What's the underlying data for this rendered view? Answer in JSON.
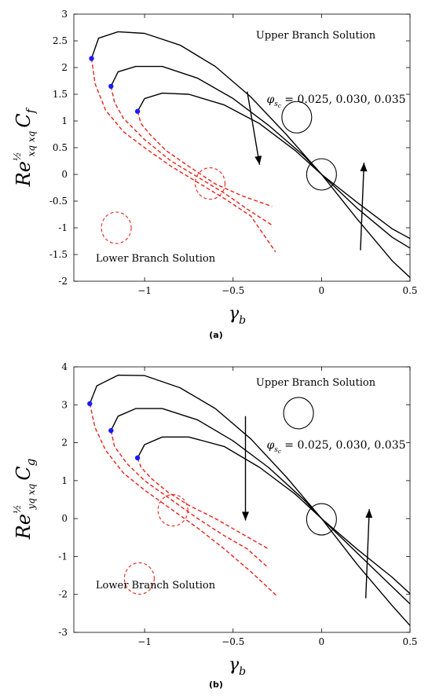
{
  "chart_data": [
    {
      "panel": "(a)",
      "type": "line",
      "title": "",
      "xlabel": "γ_b",
      "ylabel": "Re^{1/2}_{x_q x_q} C_f",
      "xlim": [
        -1.4,
        0.5
      ],
      "ylim": [
        -2,
        3
      ],
      "xticks": [
        -1,
        -0.5,
        0,
        0.5
      ],
      "xtick_labels": [
        "−1",
        "−0.5",
        "0",
        "0.5"
      ],
      "yticks": [
        -2,
        -1.5,
        -1,
        -0.5,
        0,
        0.5,
        1,
        1.5,
        2,
        2.5,
        3
      ],
      "ytick_labels": [
        "-2",
        "-1.5",
        "-1",
        "-0.5",
        "0",
        "0.5",
        "1",
        "1.5",
        "2",
        "2.5",
        "3"
      ],
      "grid": false,
      "series": [
        {
          "branch": "upper",
          "color": "#000000",
          "style": "solid",
          "points": [
            [
              -1.3,
              2.17
            ],
            [
              -1.26,
              2.55
            ],
            [
              -1.15,
              2.67
            ],
            [
              -1.0,
              2.64
            ],
            [
              -0.8,
              2.42
            ],
            [
              -0.6,
              2.02
            ],
            [
              -0.4,
              1.45
            ],
            [
              -0.2,
              0.75
            ],
            [
              0.0,
              0.0
            ],
            [
              0.2,
              -0.83
            ],
            [
              0.4,
              -1.62
            ],
            [
              0.5,
              -1.93
            ]
          ]
        },
        {
          "branch": "upper",
          "color": "#000000",
          "style": "solid",
          "points": [
            [
              -1.19,
              1.65
            ],
            [
              -1.15,
              1.92
            ],
            [
              -1.05,
              2.02
            ],
            [
              -0.9,
              2.02
            ],
            [
              -0.7,
              1.8
            ],
            [
              -0.5,
              1.42
            ],
            [
              -0.3,
              0.92
            ],
            [
              -0.1,
              0.35
            ],
            [
              0.0,
              0.0
            ],
            [
              0.2,
              -0.63
            ],
            [
              0.4,
              -1.18
            ],
            [
              0.5,
              -1.38
            ]
          ]
        },
        {
          "branch": "upper",
          "color": "#000000",
          "style": "solid",
          "points": [
            [
              -1.04,
              1.18
            ],
            [
              -1.0,
              1.42
            ],
            [
              -0.9,
              1.52
            ],
            [
              -0.75,
              1.5
            ],
            [
              -0.55,
              1.3
            ],
            [
              -0.35,
              0.95
            ],
            [
              -0.15,
              0.45
            ],
            [
              0.0,
              0.0
            ],
            [
              0.2,
              -0.52
            ],
            [
              0.4,
              -1.02
            ],
            [
              0.5,
              -1.2
            ]
          ]
        },
        {
          "branch": "lower",
          "color": "#e8221a",
          "style": "dashed",
          "points": [
            [
              -1.3,
              2.17
            ],
            [
              -1.28,
              1.7
            ],
            [
              -1.22,
              1.2
            ],
            [
              -1.12,
              0.8
            ],
            [
              -1.0,
              0.5
            ],
            [
              -0.85,
              0.15
            ],
            [
              -0.7,
              -0.15
            ],
            [
              -0.55,
              -0.45
            ],
            [
              -0.4,
              -0.78
            ],
            [
              -0.26,
              -1.45
            ]
          ]
        },
        {
          "branch": "lower",
          "color": "#e8221a",
          "style": "dashed",
          "points": [
            [
              -1.19,
              1.65
            ],
            [
              -1.17,
              1.35
            ],
            [
              -1.12,
              1.05
            ],
            [
              -1.0,
              0.65
            ],
            [
              -0.85,
              0.25
            ],
            [
              -0.7,
              -0.05
            ],
            [
              -0.55,
              -0.35
            ],
            [
              -0.42,
              -0.65
            ],
            [
              -0.28,
              -0.95
            ]
          ]
        },
        {
          "branch": "lower",
          "color": "#e8221a",
          "style": "dashed",
          "points": [
            [
              -1.04,
              1.18
            ],
            [
              -1.02,
              0.95
            ],
            [
              -0.97,
              0.75
            ],
            [
              -0.88,
              0.45
            ],
            [
              -0.75,
              0.15
            ],
            [
              -0.6,
              -0.18
            ],
            [
              -0.45,
              -0.4
            ],
            [
              -0.28,
              -0.6
            ]
          ]
        }
      ],
      "turning_points": [
        [
          -1.3,
          2.17
        ],
        [
          -1.19,
          1.65
        ],
        [
          -1.04,
          1.18
        ]
      ],
      "marker_color": "#1a1aff",
      "annotations": {
        "upper_label": "Upper Branch Solution",
        "lower_label": "Lower Branch Solution",
        "param_label": "φ_{s_c} = 0.025, 0.030, 0.035"
      },
      "caption": "(a)"
    },
    {
      "panel": "(b)",
      "type": "line",
      "title": "",
      "xlabel": "γ_b",
      "ylabel": "Re^{1/2}_{y_q x_q} C_g",
      "xlim": [
        -1.4,
        0.5
      ],
      "ylim": [
        -3,
        4
      ],
      "xticks": [
        -1,
        -0.5,
        0,
        0.5
      ],
      "xtick_labels": [
        "−1",
        "−0.5",
        "0",
        "0.5"
      ],
      "yticks": [
        -3,
        -2,
        -1,
        0,
        1,
        2,
        3,
        4
      ],
      "ytick_labels": [
        "-3",
        "-2",
        "-1",
        "0",
        "1",
        "2",
        "3",
        "4"
      ],
      "grid": false,
      "series": [
        {
          "branch": "upper",
          "color": "#000000",
          "style": "solid",
          "points": [
            [
              -1.31,
              3.03
            ],
            [
              -1.27,
              3.5
            ],
            [
              -1.15,
              3.78
            ],
            [
              -1.0,
              3.77
            ],
            [
              -0.8,
              3.45
            ],
            [
              -0.6,
              2.9
            ],
            [
              -0.4,
              2.1
            ],
            [
              -0.2,
              1.1
            ],
            [
              0.0,
              0.0
            ],
            [
              0.2,
              -1.2
            ],
            [
              0.4,
              -2.3
            ],
            [
              0.5,
              -2.82
            ]
          ]
        },
        {
          "branch": "upper",
          "color": "#000000",
          "style": "solid",
          "points": [
            [
              -1.19,
              2.32
            ],
            [
              -1.15,
              2.7
            ],
            [
              -1.05,
              2.9
            ],
            [
              -0.9,
              2.9
            ],
            [
              -0.7,
              2.6
            ],
            [
              -0.5,
              2.05
            ],
            [
              -0.3,
              1.35
            ],
            [
              -0.1,
              0.5
            ],
            [
              0.0,
              0.0
            ],
            [
              0.2,
              -0.9
            ],
            [
              0.4,
              -1.8
            ],
            [
              0.5,
              -2.25
            ]
          ]
        },
        {
          "branch": "upper",
          "color": "#000000",
          "style": "solid",
          "points": [
            [
              -1.04,
              1.6
            ],
            [
              -1.0,
              1.95
            ],
            [
              -0.9,
              2.15
            ],
            [
              -0.75,
              2.15
            ],
            [
              -0.55,
              1.9
            ],
            [
              -0.35,
              1.35
            ],
            [
              -0.15,
              0.65
            ],
            [
              0.0,
              0.0
            ],
            [
              0.2,
              -0.8
            ],
            [
              0.4,
              -1.55
            ],
            [
              0.5,
              -1.98
            ]
          ]
        },
        {
          "branch": "lower",
          "color": "#e8221a",
          "style": "dashed",
          "points": [
            [
              -1.31,
              3.03
            ],
            [
              -1.28,
              2.4
            ],
            [
              -1.22,
              1.8
            ],
            [
              -1.12,
              1.2
            ],
            [
              -1.0,
              0.75
            ],
            [
              -0.85,
              0.25
            ],
            [
              -0.7,
              -0.25
            ],
            [
              -0.55,
              -0.8
            ],
            [
              -0.4,
              -1.4
            ],
            [
              -0.25,
              -2.05
            ]
          ]
        },
        {
          "branch": "lower",
          "color": "#e8221a",
          "style": "dashed",
          "points": [
            [
              -1.19,
              2.32
            ],
            [
              -1.17,
              1.9
            ],
            [
              -1.1,
              1.45
            ],
            [
              -1.0,
              1.0
            ],
            [
              -0.85,
              0.5
            ],
            [
              -0.7,
              0.0
            ],
            [
              -0.55,
              -0.45
            ],
            [
              -0.42,
              -0.8
            ],
            [
              -0.3,
              -1.3
            ]
          ]
        },
        {
          "branch": "lower",
          "color": "#e8221a",
          "style": "dashed",
          "points": [
            [
              -1.04,
              1.6
            ],
            [
              -1.02,
              1.35
            ],
            [
              -0.96,
              1.05
            ],
            [
              -0.87,
              0.7
            ],
            [
              -0.75,
              0.35
            ],
            [
              -0.6,
              0.0
            ],
            [
              -0.45,
              -0.4
            ],
            [
              -0.3,
              -0.8
            ]
          ]
        }
      ],
      "turning_points": [
        [
          -1.31,
          3.03
        ],
        [
          -1.19,
          2.32
        ],
        [
          -1.04,
          1.6
        ]
      ],
      "marker_color": "#1a1aff",
      "annotations": {
        "upper_label": "Upper Branch Solution",
        "lower_label": "Lower Branch Solution",
        "param_label": "φ_{s_c} = 0.025, 0.030, 0.035"
      },
      "caption": "(b)"
    }
  ]
}
